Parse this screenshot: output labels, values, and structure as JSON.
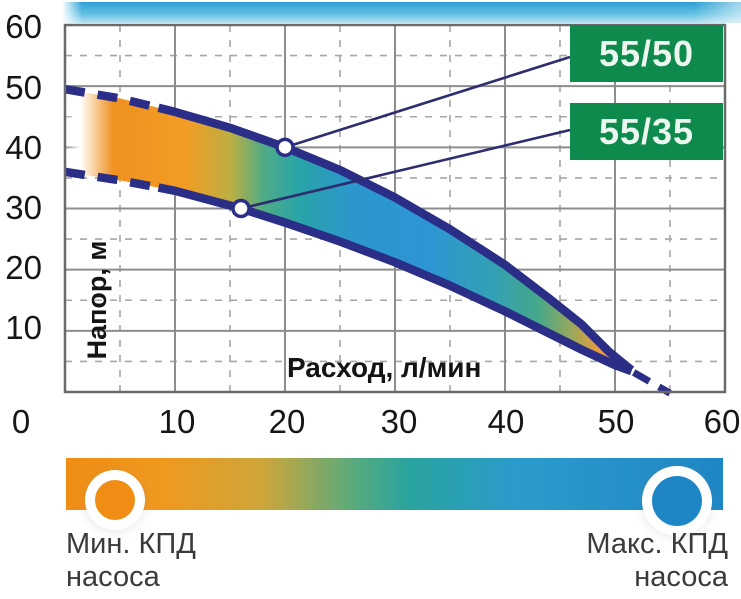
{
  "axes": {
    "y_title": "Напор, м",
    "x_title": "Расход, л/мин",
    "y_ticks": [
      "60",
      "50",
      "40",
      "30",
      "20",
      "10"
    ],
    "x_ticks": [
      "0",
      "10",
      "20",
      "30",
      "40",
      "50",
      "60"
    ]
  },
  "callout_labels": {
    "upper": "55/50",
    "lower": "55/35"
  },
  "legend": {
    "min_line1": "Мин. КПД",
    "min_line2": "насоса",
    "max_line1": "Макс. КПД",
    "max_line2": "насоса"
  },
  "colors": {
    "curve": "#2b2e87",
    "callout_line": "#2d2d6f",
    "grid_major": "#8d8d8d",
    "grid_minor": "#a6a6a6",
    "plot_border": "#6a6a6a",
    "label_box_bg": "#0f8a4d",
    "label_box_text": "#ecf7f0",
    "marker_fill": "#ffffff",
    "legend_text": "#3b3b3b",
    "tick_text": "#161616",
    "efficiency_min": "#ef8d15",
    "efficiency_max": "#1f86c6",
    "strip_top": "#2f9fd3",
    "strip_mid": "#5fc0e2",
    "strip_bottom": "#b8e2f1",
    "band_gradient": [
      [
        "#ffffff",
        0,
        0
      ],
      [
        "#ffffff",
        2.5,
        1
      ],
      [
        "#f09120",
        8
      ],
      [
        "#f29c24",
        20
      ],
      [
        "#bcae43",
        27.5
      ],
      [
        "#4fab86",
        33
      ],
      [
        "#2aa4a6",
        38.5
      ],
      [
        "#2b97cc",
        47.5
      ],
      [
        "#2e95d5",
        60
      ],
      [
        "#31a0b4",
        71
      ],
      [
        "#46a78a",
        78.5
      ],
      [
        "#98a85d",
        84
      ],
      [
        "#e79b3c",
        88.5
      ],
      [
        "#f2a952",
        93
      ],
      [
        "#f7dcae",
        97
      ]
    ],
    "legend_gradient": [
      [
        "#ef8d15",
        0
      ],
      [
        "#f0991f",
        15
      ],
      [
        "#cda63a",
        30
      ],
      [
        "#57aa7e",
        44
      ],
      [
        "#2aa49e",
        52
      ],
      [
        "#2b9ccb",
        68
      ],
      [
        "#1f86c6",
        100
      ]
    ]
  },
  "chart_data": {
    "type": "area",
    "title": "",
    "xlabel": "Расход, л/мин",
    "ylabel": "Напор, м",
    "xlim": [
      0,
      60
    ],
    "ylim": [
      0,
      60
    ],
    "grid": "major solid every 10, minor dashed every 5",
    "legend_position": "right callout boxes",
    "x_grid_major": [
      10,
      20,
      30,
      40,
      50
    ],
    "x_grid_minor": [
      5,
      15,
      25,
      35,
      45,
      55
    ],
    "y_grid_major": [
      10,
      20,
      30,
      40,
      50
    ],
    "y_grid_minor": [
      5,
      15,
      25,
      35,
      45,
      55
    ],
    "series": [
      {
        "name": "55/50",
        "x": [
          0,
          5,
          10,
          15,
          20,
          25,
          30,
          35,
          40,
          44,
          47,
          49.5,
          51.5
        ],
        "y": [
          49.5,
          48,
          45.8,
          43.2,
          40,
          36.3,
          31.8,
          26.6,
          20.8,
          15.3,
          11,
          6.5,
          3.6
        ],
        "dash_split": 8.5,
        "marker": {
          "x": 20,
          "y": 40
        }
      },
      {
        "name": "55/35",
        "x": [
          0,
          5,
          10,
          16,
          20,
          25,
          30,
          35,
          40,
          44,
          47,
          50,
          51.5
        ],
        "y": [
          36,
          34.6,
          32.9,
          30,
          27.7,
          24.6,
          21.2,
          17.4,
          13.2,
          9.6,
          6.9,
          4.4,
          3.4
        ],
        "dash_split": 8.5,
        "marker": {
          "x": 16,
          "y": 30
        }
      }
    ],
    "tail_dashed": {
      "x": [
        51.7,
        55
      ],
      "y": [
        3.2,
        -0.2
      ]
    },
    "band": "область между кривыми — градиент КПД: оранжевый (мин) по краям, синий (макс) в середине"
  }
}
